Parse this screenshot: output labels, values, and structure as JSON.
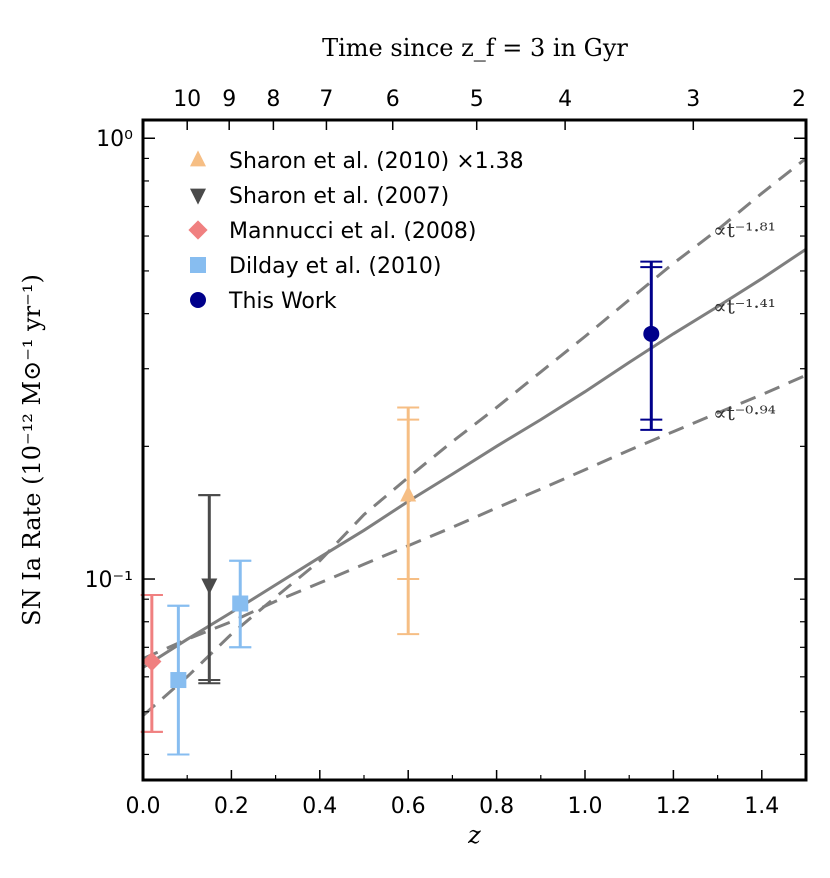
{
  "chart_data": {
    "type": "scatter",
    "title": "",
    "xlabel": "z",
    "ylabel": "SN Ia Rate (10⁻¹² M⊙⁻¹ yr⁻¹)",
    "xlim": [
      0.0,
      1.5
    ],
    "ylim": [
      0.035,
      1.1
    ],
    "y_scale": "log",
    "x_ticks": [
      "0.0",
      "0.2",
      "0.4",
      "0.6",
      "0.8",
      "1.0",
      "1.2",
      "1.4"
    ],
    "y_tick_labels": [
      {
        "value": 1.0,
        "label": "10⁰"
      },
      {
        "value": 0.1,
        "label": "10⁻¹"
      }
    ],
    "top_axis": {
      "label": "Time since z_f = 3 in Gyr",
      "ticks": [
        {
          "label": "10",
          "z": 0.1
        },
        {
          "label": "9",
          "z": 0.195
        },
        {
          "label": "8",
          "z": 0.295
        },
        {
          "label": "7",
          "z": 0.415
        },
        {
          "label": "6",
          "z": 0.565
        },
        {
          "label": "5",
          "z": 0.755
        },
        {
          "label": "4",
          "z": 0.955
        },
        {
          "label": "3",
          "z": 1.245
        },
        {
          "label": "2",
          "z": 1.5
        }
      ]
    },
    "legend_position": "top-left",
    "series": [
      {
        "name": "Sharon et al. (2010) ×1.38",
        "marker": "triangle-up",
        "color": "#f6be84",
        "points": [
          {
            "x": 0.6,
            "y": 0.155,
            "lo": 0.075,
            "hi": 0.245,
            "lo_inner": 0.1,
            "hi_inner": 0.23
          }
        ]
      },
      {
        "name": "Sharon et al. (2007)",
        "marker": "triangle-down",
        "color": "#4a4a4a",
        "points": [
          {
            "x": 0.15,
            "y": 0.097,
            "lo": 0.058,
            "hi": 0.155,
            "lo_inner": 0.059,
            "hi_inner": 0.155
          }
        ]
      },
      {
        "name": "Mannucci et al. (2008)",
        "marker": "diamond",
        "color": "#f08080",
        "points": [
          {
            "x": 0.02,
            "y": 0.065,
            "lo": 0.045,
            "hi": 0.092,
            "lo_inner": 0.045,
            "hi_inner": 0.092
          }
        ]
      },
      {
        "name": "Dilday et al. (2010)",
        "marker": "square",
        "color": "#87bdf0",
        "points": [
          {
            "x": 0.08,
            "y": 0.059,
            "lo": 0.04,
            "hi": 0.087,
            "lo_inner": 0.04,
            "hi_inner": 0.087
          },
          {
            "x": 0.22,
            "y": 0.088,
            "lo": 0.07,
            "hi": 0.11,
            "lo_inner": 0.07,
            "hi_inner": 0.11
          }
        ]
      },
      {
        "name": "This Work",
        "marker": "circle",
        "color": "#00008b",
        "points": [
          {
            "x": 1.15,
            "y": 0.36,
            "lo": 0.218,
            "hi": 0.525,
            "lo_inner": 0.23,
            "hi_inner": 0.51
          }
        ]
      }
    ],
    "fit_lines": [
      {
        "label": "∝t⁻¹·⁸¹",
        "style": "dashed",
        "points": [
          [
            0.0,
            0.049
          ],
          [
            0.1,
            0.06
          ],
          [
            0.2,
            0.075
          ],
          [
            0.3,
            0.091
          ],
          [
            0.4,
            0.11
          ],
          [
            0.5,
            0.14
          ],
          [
            0.6,
            0.17
          ],
          [
            0.7,
            0.205
          ],
          [
            0.8,
            0.245
          ],
          [
            0.9,
            0.295
          ],
          [
            1.0,
            0.355
          ],
          [
            1.1,
            0.43
          ],
          [
            1.2,
            0.52
          ],
          [
            1.3,
            0.62
          ],
          [
            1.4,
            0.75
          ],
          [
            1.5,
            0.9
          ]
        ]
      },
      {
        "label": "∝t⁻¹·⁴¹",
        "style": "solid",
        "points": [
          [
            0.0,
            0.063
          ],
          [
            0.1,
            0.073
          ],
          [
            0.2,
            0.084
          ],
          [
            0.3,
            0.097
          ],
          [
            0.4,
            0.112
          ],
          [
            0.5,
            0.129
          ],
          [
            0.6,
            0.15
          ],
          [
            0.7,
            0.173
          ],
          [
            0.8,
            0.2
          ],
          [
            0.9,
            0.23
          ],
          [
            1.0,
            0.266
          ],
          [
            1.1,
            0.31
          ],
          [
            1.2,
            0.36
          ],
          [
            1.3,
            0.415
          ],
          [
            1.4,
            0.48
          ],
          [
            1.5,
            0.56
          ]
        ]
      },
      {
        "label": "∝t⁻⁰·⁹⁴",
        "style": "dashed",
        "points": [
          [
            0.0,
            0.066
          ],
          [
            0.1,
            0.073
          ],
          [
            0.2,
            0.08
          ],
          [
            0.3,
            0.089
          ],
          [
            0.4,
            0.098
          ],
          [
            0.5,
            0.108
          ],
          [
            0.6,
            0.119
          ],
          [
            0.7,
            0.131
          ],
          [
            0.8,
            0.145
          ],
          [
            0.9,
            0.16
          ],
          [
            1.0,
            0.177
          ],
          [
            1.1,
            0.196
          ],
          [
            1.2,
            0.216
          ],
          [
            1.3,
            0.238
          ],
          [
            1.4,
            0.262
          ],
          [
            1.5,
            0.29
          ]
        ]
      }
    ]
  }
}
